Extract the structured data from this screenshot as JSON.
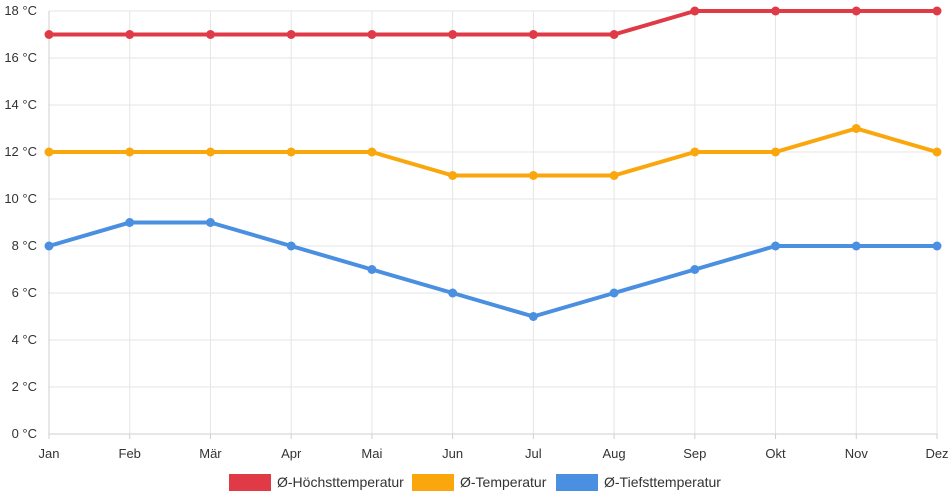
{
  "chart_data": {
    "type": "line",
    "categories": [
      "Jan",
      "Feb",
      "Mär",
      "Apr",
      "Mai",
      "Jun",
      "Jul",
      "Aug",
      "Sep",
      "Okt",
      "Nov",
      "Dez"
    ],
    "y_unit": "°C",
    "ylim": [
      0,
      18
    ],
    "y_ticks": [
      "0 °C",
      "2 °C",
      "4 °C",
      "6 °C",
      "8 °C",
      "10 °C",
      "12 °C",
      "14 °C",
      "16 °C",
      "18 °C"
    ],
    "y_tick_values": [
      0,
      2,
      4,
      6,
      8,
      10,
      12,
      14,
      16,
      18
    ],
    "grid": true,
    "legend_position": "bottom-center",
    "series": [
      {
        "name": "Ø-Höchsttemperatur",
        "color": "#e03a47",
        "values": [
          17,
          17,
          17,
          17,
          17,
          17,
          17,
          17,
          18,
          18,
          18,
          18
        ]
      },
      {
        "name": "Ø-Temperatur",
        "color": "#f9a70d",
        "values": [
          12,
          12,
          12,
          12,
          12,
          11,
          11,
          11,
          12,
          12,
          13,
          12
        ]
      },
      {
        "name": "Ø-Tiefsttemperatur",
        "color": "#4a8fe0",
        "values": [
          8,
          9,
          9,
          8,
          7,
          6,
          5,
          6,
          7,
          8,
          8,
          8
        ]
      }
    ]
  }
}
